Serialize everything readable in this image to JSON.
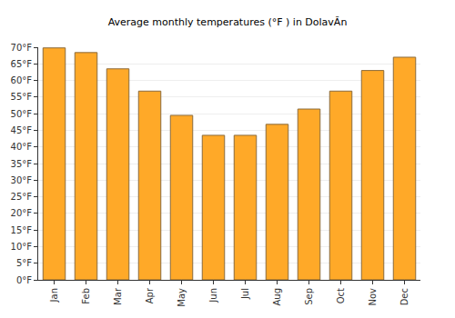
{
  "chart_data": {
    "type": "bar",
    "title": "Average monthly temperatures (°F ) in DolavĂn",
    "categories": [
      "Jan",
      "Feb",
      "Mar",
      "Apr",
      "May",
      "Jun",
      "Jul",
      "Aug",
      "Sep",
      "Oct",
      "Nov",
      "Dec"
    ],
    "values": [
      69.8,
      68.4,
      63.5,
      56.8,
      49.5,
      43.5,
      43.5,
      46.8,
      51.4,
      56.8,
      63.0,
      67.0
    ],
    "color": "#ffa928",
    "ylim": [
      0,
      70
    ],
    "yticks": [
      {
        "value": 0,
        "label": "0°F"
      },
      {
        "value": 5,
        "label": "5°F"
      },
      {
        "value": 10,
        "label": "10°F"
      },
      {
        "value": 15,
        "label": "15°F"
      },
      {
        "value": 20,
        "label": "20°F"
      },
      {
        "value": 25,
        "label": "25°F"
      },
      {
        "value": 30,
        "label": "30°F"
      },
      {
        "value": 35,
        "label": "35°F"
      },
      {
        "value": 40,
        "label": "40°F"
      },
      {
        "value": 45,
        "label": "45°F"
      },
      {
        "value": 50,
        "label": "50°F"
      },
      {
        "value": 55,
        "label": "55°F"
      },
      {
        "value": 60,
        "label": "60°F"
      },
      {
        "value": 65,
        "label": "65°F"
      },
      {
        "value": 70,
        "label": "70°F"
      }
    ],
    "grid": true
  }
}
